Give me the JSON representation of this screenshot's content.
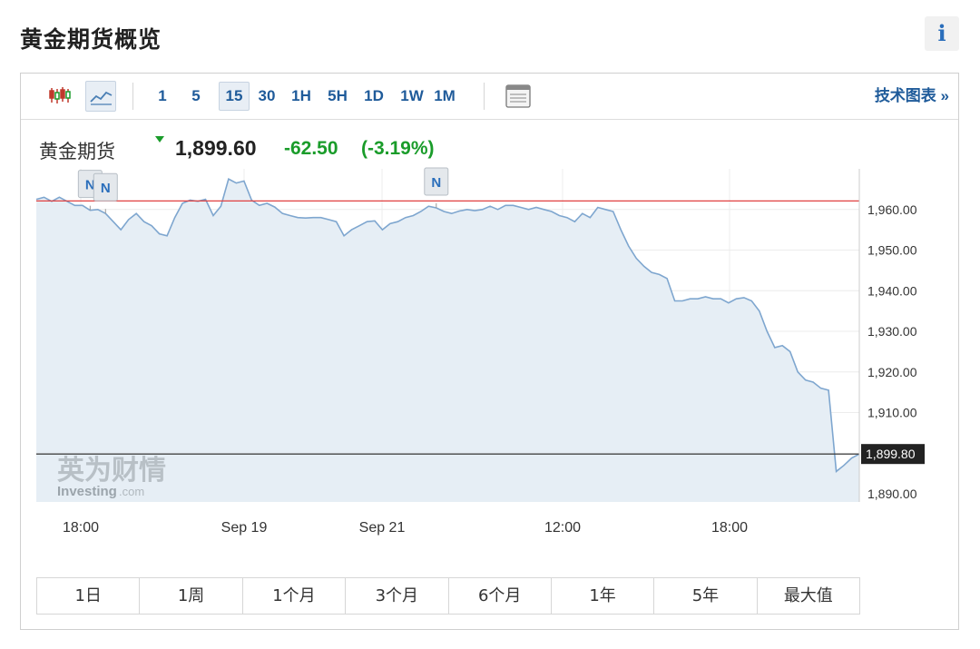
{
  "page": {
    "title": "黄金期货概览",
    "info_label": "i"
  },
  "toolbar": {
    "intervals": [
      "1",
      "5",
      "15",
      "30",
      "1H",
      "5H",
      "1D",
      "1W",
      "1M"
    ],
    "active_interval": "15",
    "tech_chart_label": "技术图表 »"
  },
  "quote": {
    "name": "黄金期货",
    "price": "1,899.60",
    "change": "-62.50",
    "change_pct": "(-3.19%)"
  },
  "colors": {
    "accent": "#1f5b9a",
    "positive_change": "#1a9c2a",
    "ref_line": "#e04040",
    "series_line": "#7ea6cf",
    "series_fill": "#e6eef5"
  },
  "watermark": {
    "cn": "英为财情",
    "en": "Investing",
    "en_suffix": ".com"
  },
  "chart_data": {
    "type": "area",
    "y_ticks": [
      "1,960.00",
      "1,950.00",
      "1,940.00",
      "1,930.00",
      "1,920.00",
      "1,910.00",
      "1,890.00"
    ],
    "y_tick_values": [
      1960,
      1950,
      1940,
      1930,
      1920,
      1910,
      1890
    ],
    "x_ticks": [
      "18:00",
      "Sep 19",
      "Sep 21",
      "12:00",
      "18:00"
    ],
    "ylim": [
      1888,
      1970
    ],
    "reference_line": 1962.1,
    "last_value_label": "1,899.80",
    "last_value": 1899.8,
    "news_markers": [
      {
        "label": "N",
        "index": 7
      },
      {
        "label": "N",
        "index": 9
      },
      {
        "label": "N",
        "index": 52
      }
    ],
    "series": [
      {
        "values": [
          1962.5,
          1963,
          1962,
          1963,
          1962,
          1961,
          1961,
          1959.8,
          1960,
          1959,
          1957,
          1955,
          1957.5,
          1959,
          1957,
          1956,
          1954,
          1953.5,
          1958,
          1961.5,
          1962.3,
          1962,
          1962.5,
          1958.5,
          1960.8,
          1967.5,
          1966.5,
          1967,
          1962.3,
          1961,
          1961.5,
          1960.6,
          1959,
          1958.5,
          1958,
          1957.9,
          1958,
          1958,
          1957.5,
          1957,
          1953.5,
          1955,
          1956,
          1957,
          1957.2,
          1955,
          1956.5,
          1957,
          1958,
          1958.5,
          1959.5,
          1960.8,
          1960.4,
          1959.5,
          1959,
          1959.6,
          1960,
          1959.7,
          1960,
          1960.8,
          1960,
          1961,
          1961,
          1960.5,
          1960,
          1960.5,
          1960,
          1959.5,
          1958.5,
          1958,
          1957,
          1959,
          1958,
          1960.5,
          1960,
          1959.5,
          1955,
          1951,
          1948,
          1946,
          1944.5,
          1944,
          1943,
          1937.5,
          1937.5,
          1938,
          1938,
          1938.5,
          1938,
          1938,
          1937,
          1938,
          1938.3,
          1937.5,
          1935,
          1930,
          1926,
          1926.5,
          1925,
          1920,
          1918,
          1917.5,
          1916,
          1915.5,
          1895.5,
          1897,
          1898.8,
          1899.8
        ]
      }
    ]
  }
}
